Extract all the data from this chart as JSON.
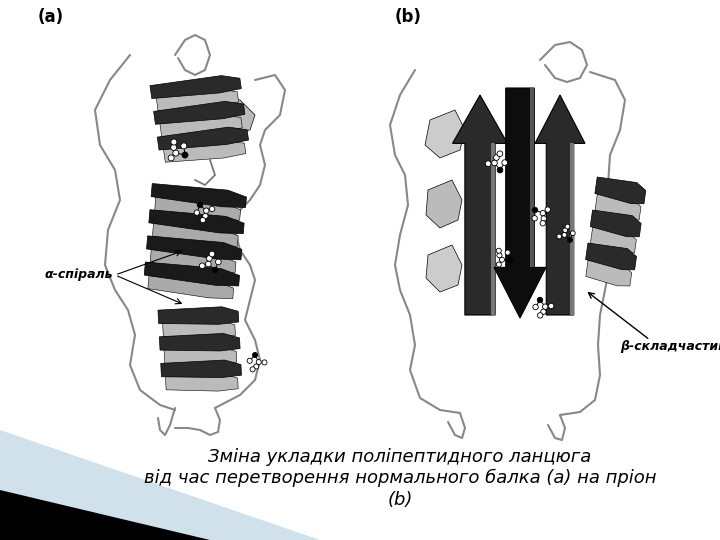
{
  "background_color": "#ffffff",
  "label_a": "(a)",
  "label_b": "(b)",
  "label_alpha": "α-спіраль",
  "label_beta": "β-складчастий шар",
  "caption_line1": "Зміна укладки поліпептидного ланцюга",
  "caption_line2": "від час перетворення нормального балка (a) на пріон",
  "caption_line3": "(b)",
  "stripe_light_color": "#c8dce8",
  "stripe_dark_color": "#000000",
  "font_size_labels": 12,
  "font_size_caption": 13,
  "font_size_annotation": 9
}
